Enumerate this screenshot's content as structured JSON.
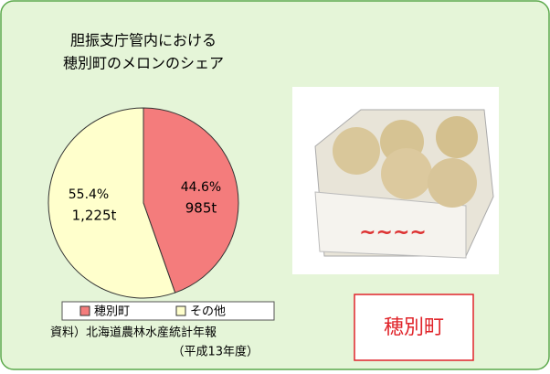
{
  "chart_data": {
    "type": "pie",
    "title": [
      "胆振支庁管内における",
      "穂別町のメロンのシェア"
    ],
    "categories": [
      "穂別町",
      "その他"
    ],
    "values": [
      44.6,
      55.4
    ],
    "value_labels": [
      "44.6%",
      "55.4%"
    ],
    "tonnage": [
      985,
      1225
    ],
    "tonnage_labels": [
      "985t",
      "1,225t"
    ],
    "colors": [
      "#f47c7c",
      "#ffffcc"
    ],
    "source": [
      "資料）北海道農林水産統計年報",
      "（平成13年度）"
    ],
    "badge": "穂別町"
  }
}
